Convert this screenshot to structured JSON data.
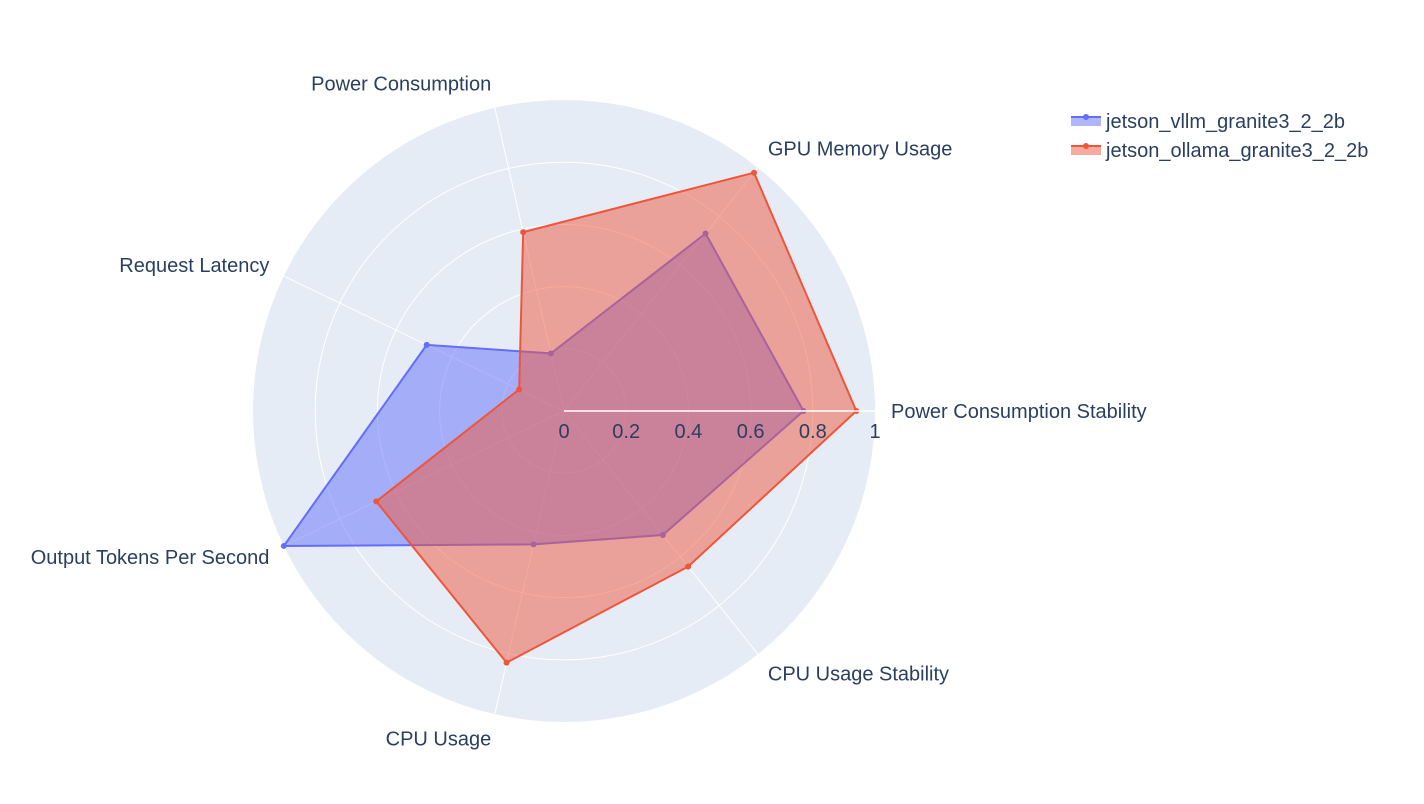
{
  "chart_data": {
    "type": "radar",
    "axes": [
      "Power Consumption Stability",
      "GPU Memory Usage",
      "Power Consumption",
      "Request Latency",
      "Output Tokens Per Second",
      "CPU Usage",
      "CPU Usage Stability"
    ],
    "radial_ticks": [
      "0",
      "0.2",
      "0.4",
      "0.6",
      "0.8",
      "1"
    ],
    "radial_range": [
      0,
      1
    ],
    "grid": true,
    "legend_position": "top-right",
    "series": [
      {
        "name": "jetson_vllm_granite3_2_2b",
        "color": "#636efa",
        "fill": "rgba(99,110,250,0.5)",
        "values": [
          0.77,
          0.73,
          0.19,
          0.49,
          1.0,
          0.44,
          0.51
        ]
      },
      {
        "name": "jetson_ollama_granite3_2_2b",
        "color": "#ef553b",
        "fill": "rgba(239,85,59,0.5)",
        "values": [
          0.94,
          0.98,
          0.59,
          0.16,
          0.67,
          0.83,
          0.64
        ]
      }
    ]
  }
}
